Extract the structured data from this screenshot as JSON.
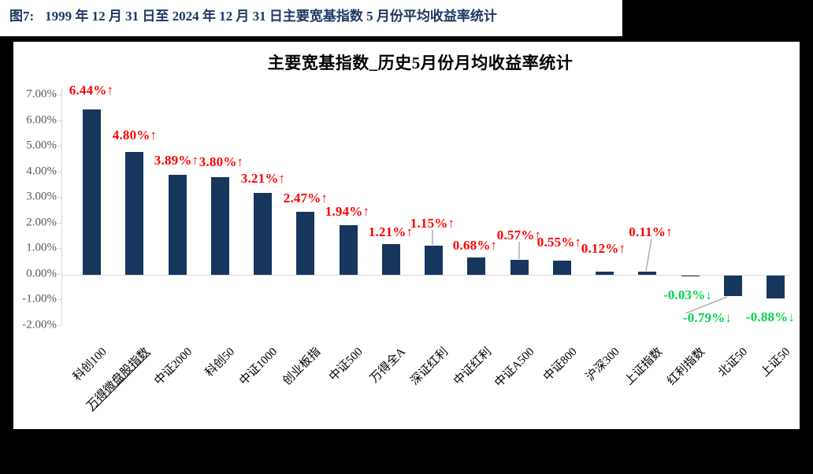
{
  "figure_header": {
    "label": "图7:",
    "text": "1999 年 12 月 31 日至 2024 年 12 月 31 日主要宽基指数 5 月份平均收益率统计"
  },
  "chart_data": {
    "type": "bar",
    "title": "主要宽基指数_历史5月份月均收益率统计",
    "categories": [
      "科创100",
      "万得微盘股指数",
      "中证2000",
      "科创50",
      "中证1000",
      "创业板指",
      "中证500",
      "万得全A",
      "深证红利",
      "中证红利",
      "中证A500",
      "中证800",
      "沪深300",
      "上证指数",
      "红利指数",
      "北证50",
      "上证50"
    ],
    "values": [
      6.44,
      4.8,
      3.89,
      3.8,
      3.21,
      2.47,
      1.94,
      1.21,
      1.15,
      0.68,
      0.57,
      0.55,
      0.12,
      0.11,
      -0.03,
      -0.79,
      -0.88
    ],
    "value_labels": [
      "6.44%↑",
      "4.80%↑",
      "3.89%↑",
      "3.80%↑",
      "3.21%↑",
      "2.47%↑",
      "1.94%↑",
      "1.21%↑",
      "1.15%↑",
      "0.68%↑",
      "0.57%↑",
      "0.55%↑",
      "0.12%↑",
      "0.11%↑",
      "-0.03%↓",
      "-0.79%↓",
      "-0.88%↓"
    ],
    "underlined_category": "万得微盘股指数",
    "y_ticks": [
      "7.00%",
      "6.00%",
      "5.00%",
      "4.00%",
      "3.00%",
      "2.00%",
      "1.00%",
      "0.00%",
      "-1.00%",
      "-2.00%"
    ],
    "ylim": [
      -2,
      7
    ],
    "xlabel": "",
    "ylabel": "",
    "grid": false,
    "legend": false,
    "colors": {
      "bar": "#17365D",
      "positive_label": "#FF0000",
      "negative_label": "#00D44B",
      "axis_line": "#D9D9D9",
      "leader_line": "#ABABAB",
      "y_tick_text": "#595959",
      "header_text": "#1F3864"
    }
  }
}
